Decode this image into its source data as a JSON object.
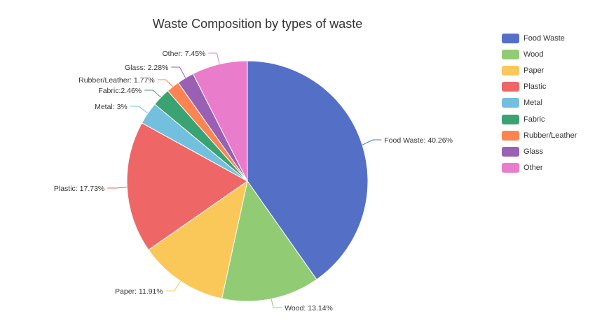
{
  "chart_data": {
    "type": "pie",
    "title": "Waste Composition by types of waste",
    "slices": [
      {
        "name": "Food Waste",
        "value": 40.26,
        "label": "Food Waste: 40.26%",
        "color": "#5470c6"
      },
      {
        "name": "Wood",
        "value": 13.14,
        "label": "Wood: 13.14%",
        "color": "#91cc75"
      },
      {
        "name": "Paper",
        "value": 11.91,
        "label": "Paper: 11.91%",
        "color": "#fac858"
      },
      {
        "name": "Plastic",
        "value": 17.73,
        "label": "Plastic: 17.73%",
        "color": "#ee6666"
      },
      {
        "name": "Metal",
        "value": 3,
        "label": "Metal: 3%",
        "color": "#73c0de"
      },
      {
        "name": "Fabric",
        "value": 2.46,
        "label": "Fabric:2.46%",
        "color": "#3ba272"
      },
      {
        "name": "Rubber/Leather",
        "value": 1.77,
        "label": "Rubber/Leather: 1.77%",
        "color": "#fc8452"
      },
      {
        "name": "Glass",
        "value": 2.28,
        "label": "Glass: 2.28%",
        "color": "#9a60b4"
      },
      {
        "name": "Other",
        "value": 7.45,
        "label": "Other: 7.45%",
        "color": "#ea7ccc"
      }
    ],
    "legend_position": "top-right"
  }
}
